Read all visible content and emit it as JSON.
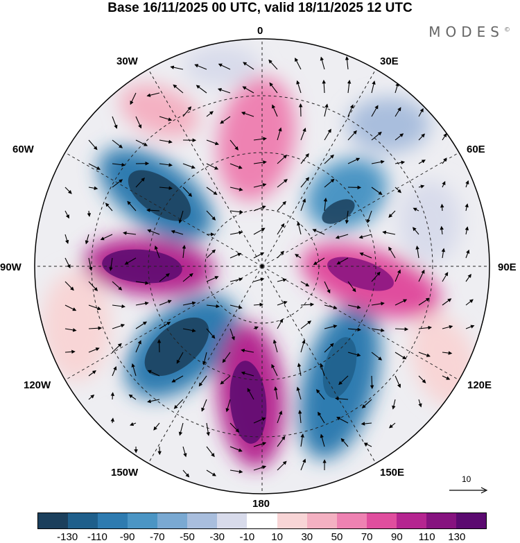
{
  "title": "Base 16/11/2025 00 UTC, valid 18/11/2025 12 UTC",
  "logo": "MODES",
  "logo_mark": "©",
  "longitude_labels": [
    "0",
    "30E",
    "60E",
    "90E",
    "120E",
    "150E",
    "180",
    "150W",
    "120W",
    "90W",
    "60W",
    "30W"
  ],
  "colorbar": {
    "ticks": [
      "-130",
      "-110",
      "-90",
      "-70",
      "-50",
      "-30",
      "-10",
      "10",
      "30",
      "50",
      "70",
      "90",
      "110",
      "130"
    ],
    "colors": [
      "#1b3f5c",
      "#1f5f8b",
      "#2e7bb0",
      "#4b95c4",
      "#7aa9d2",
      "#a9bedd",
      "#d8dbeb",
      "#ffffff",
      "#f8d5d6",
      "#f4b1c2",
      "#ee82b2",
      "#e04e9e",
      "#b52590",
      "#86137f",
      "#5b0a70"
    ]
  },
  "reference_vector": {
    "label": "10"
  },
  "map_features": {
    "projection": "south polar stereographic",
    "field": "shaded anomaly with streamline wind vectors",
    "centers": [
      {
        "name": "negative-center-60w",
        "value": -130,
        "color": "#1b3f5c"
      },
      {
        "name": "positive-center-90w",
        "value": 130,
        "color": "#5b0a70"
      },
      {
        "name": "negative-center-135w",
        "value": -130,
        "color": "#1b3f5c"
      },
      {
        "name": "positive-center-170w",
        "value": 130,
        "color": "#5b0a70"
      },
      {
        "name": "negative-center-140e",
        "value": -110,
        "color": "#1f5f8b"
      },
      {
        "name": "positive-center-95e",
        "value": 110,
        "color": "#86137f"
      },
      {
        "name": "negative-center-50e",
        "value": -130,
        "color": "#1b3f5c"
      },
      {
        "name": "positive-center-10e",
        "value": 70,
        "color": "#ee82b2"
      }
    ]
  }
}
